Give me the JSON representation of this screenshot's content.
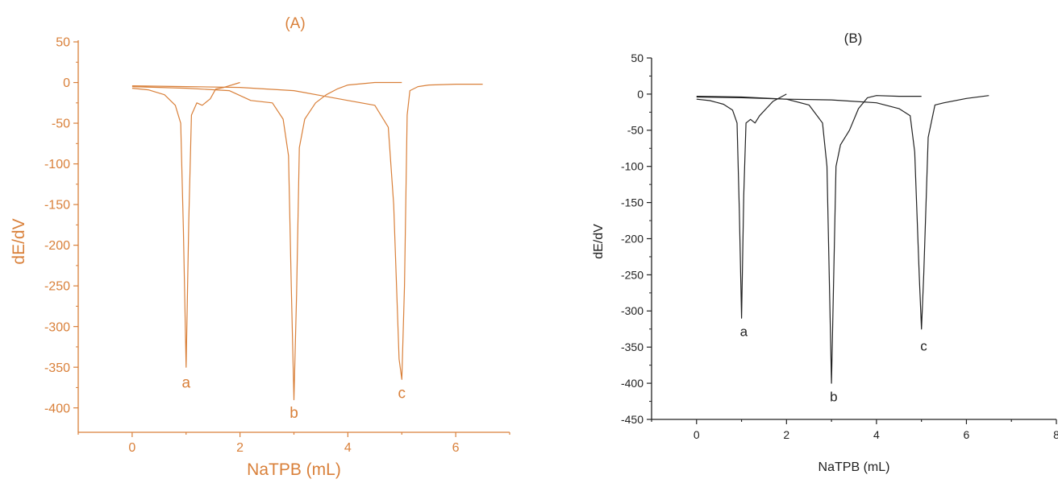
{
  "chart_data": [
    {
      "type": "line",
      "panel_label": "(A)",
      "xlabel": "NaTPB (mL)",
      "ylabel": "dE/dV",
      "xlim": [
        -1,
        7
      ],
      "ylim": [
        -430,
        52
      ],
      "xticks": [
        0,
        2,
        4,
        6
      ],
      "yticks": [
        50,
        0,
        -50,
        -100,
        -150,
        -200,
        -250,
        -300,
        -350,
        -400
      ],
      "grid": false,
      "color": "#d9803a",
      "series": [
        {
          "label": "a",
          "label_at": [
            1.0,
            -375
          ],
          "x": [
            0.0,
            0.3,
            0.6,
            0.8,
            0.9,
            0.95,
            1.0,
            1.05,
            1.1,
            1.2,
            1.3,
            1.45,
            1.55,
            1.7,
            2.0
          ],
          "y": [
            -7,
            -9,
            -15,
            -28,
            -50,
            -180,
            -350,
            -170,
            -40,
            -25,
            -28,
            -20,
            -8,
            -6,
            0
          ]
        },
        {
          "label": "b",
          "label_at": [
            3.0,
            -412
          ],
          "x": [
            0.0,
            1.0,
            1.8,
            2.2,
            2.6,
            2.8,
            2.9,
            2.95,
            3.0,
            3.05,
            3.1,
            3.2,
            3.4,
            3.6,
            3.8,
            4.0,
            4.5,
            5.0
          ],
          "y": [
            -5,
            -7,
            -10,
            -22,
            -25,
            -45,
            -90,
            -250,
            -390,
            -260,
            -80,
            -45,
            -25,
            -15,
            -8,
            -3,
            0,
            0
          ]
        },
        {
          "label": "c",
          "label_at": [
            5.0,
            -388
          ],
          "x": [
            0.0,
            1.0,
            2.0,
            3.0,
            3.5,
            4.0,
            4.5,
            4.75,
            4.85,
            4.95,
            5.0,
            5.05,
            5.1,
            5.15,
            5.3,
            5.5,
            6.0,
            6.5
          ],
          "y": [
            -4,
            -5,
            -6,
            -10,
            -16,
            -22,
            -28,
            -55,
            -150,
            -340,
            -365,
            -250,
            -40,
            -10,
            -5,
            -3,
            -2,
            -2
          ]
        }
      ]
    },
    {
      "type": "line",
      "panel_label": "(B)",
      "xlabel": "NaTPB (mL)",
      "ylabel": "dE/dV",
      "xlim": [
        -1,
        8
      ],
      "ylim": [
        -450,
        50
      ],
      "xticks": [
        0,
        2,
        4,
        6,
        8
      ],
      "yticks": [
        50,
        0,
        -50,
        -100,
        -150,
        -200,
        -250,
        -300,
        -350,
        -400,
        -450
      ],
      "grid": false,
      "color": "#222222",
      "series": [
        {
          "label": "a",
          "label_at": [
            1.05,
            -335
          ],
          "x": [
            0.0,
            0.3,
            0.6,
            0.8,
            0.9,
            0.95,
            1.0,
            1.05,
            1.1,
            1.2,
            1.3,
            1.4,
            1.55,
            1.7,
            2.0
          ],
          "y": [
            -7,
            -9,
            -14,
            -22,
            -40,
            -160,
            -310,
            -140,
            -40,
            -35,
            -40,
            -30,
            -20,
            -10,
            0
          ]
        },
        {
          "label": "b",
          "label_at": [
            3.05,
            -425
          ],
          "x": [
            0.0,
            1.0,
            2.0,
            2.5,
            2.8,
            2.9,
            2.95,
            3.0,
            3.05,
            3.1,
            3.2,
            3.4,
            3.6,
            3.8,
            4.0,
            4.5,
            5.0
          ],
          "y": [
            -3,
            -4,
            -7,
            -15,
            -40,
            -100,
            -250,
            -400,
            -250,
            -100,
            -70,
            -50,
            -20,
            -5,
            -2,
            -3,
            -3
          ]
        },
        {
          "label": "c",
          "label_at": [
            5.05,
            -355
          ],
          "x": [
            0.0,
            1.0,
            2.0,
            3.0,
            4.0,
            4.5,
            4.75,
            4.85,
            4.95,
            5.0,
            5.05,
            5.15,
            5.3,
            5.5,
            6.0,
            6.5
          ],
          "y": [
            -4,
            -5,
            -7,
            -8,
            -12,
            -20,
            -30,
            -80,
            -250,
            -325,
            -250,
            -60,
            -15,
            -12,
            -6,
            -2
          ]
        }
      ]
    }
  ]
}
